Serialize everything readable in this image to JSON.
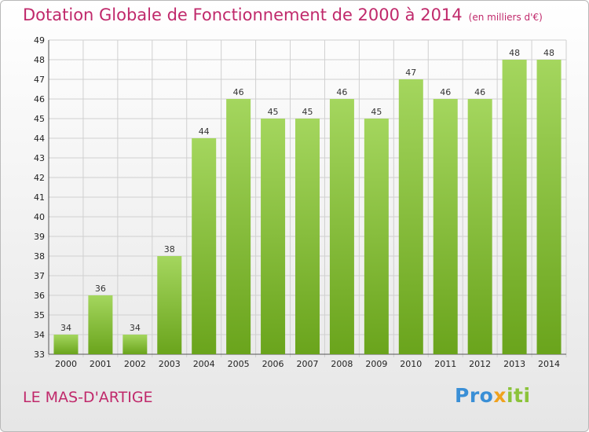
{
  "header": {
    "title": "Dotation Globale de Fonctionnement de 2000 à 2014",
    "subtitle": "(en milliers d'€)"
  },
  "footer": {
    "commune": "LE MAS-D'ARTIGE",
    "logo": "Proxiti"
  },
  "colors": {
    "title": "#c0296b",
    "bar_light": "#a4d65e",
    "bar_dark": "#6aa41c",
    "grid": "#d0d0d0"
  },
  "chart_data": {
    "type": "bar",
    "categories": [
      "2000",
      "2001",
      "2002",
      "2003",
      "2004",
      "2005",
      "2006",
      "2007",
      "2008",
      "2009",
      "2010",
      "2011",
      "2012",
      "2013",
      "2014"
    ],
    "values": [
      34,
      36,
      34,
      38,
      44,
      46,
      45,
      45,
      46,
      45,
      47,
      46,
      46,
      48,
      48
    ],
    "ylim": [
      33,
      49
    ],
    "yticks": [
      33,
      34,
      35,
      36,
      37,
      38,
      39,
      40,
      41,
      42,
      43,
      44,
      45,
      46,
      47,
      48,
      49
    ],
    "grid": true,
    "data_labels": true
  }
}
